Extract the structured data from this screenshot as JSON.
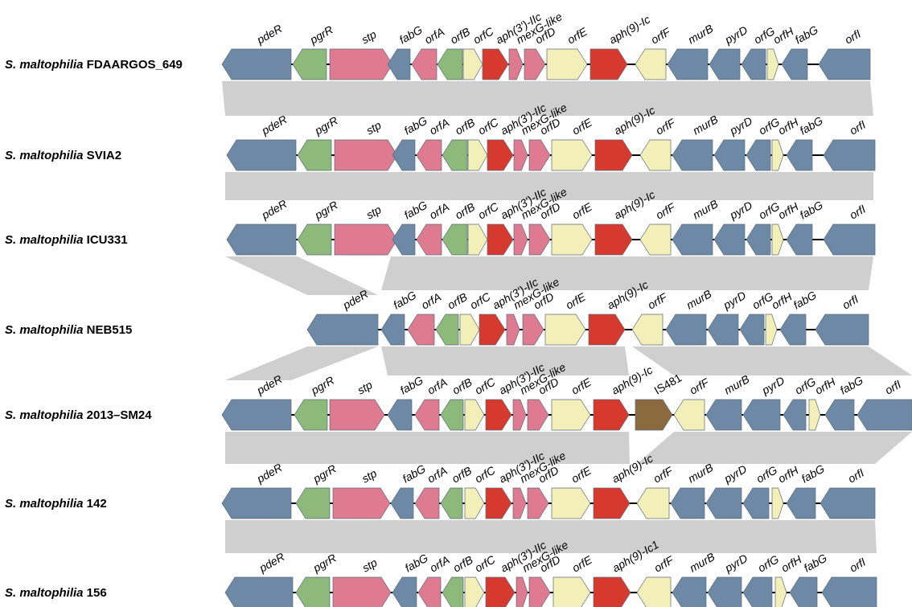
{
  "colors": {
    "regulator": "#6e89a5",
    "green": "#8db97a",
    "pink": "#df7b91",
    "light": "#f3efb9",
    "red": "#d63a2e",
    "brown": "#8a6a3e",
    "homology": "#cfcfcf"
  },
  "tracks": [
    {
      "species": "S. maltophilia",
      "strain": "FDAARGOS_649",
      "genes": [
        {
          "label": "pdeR",
          "color": "regulator",
          "dir": -1
        },
        {
          "label": "pgrR",
          "color": "green",
          "dir": -1
        },
        {
          "label": "stp",
          "color": "pink",
          "dir": 1
        },
        {
          "label": "fabG",
          "color": "regulator",
          "dir": -1
        },
        {
          "label": "orfA",
          "color": "pink",
          "dir": -1
        },
        {
          "label": "orfB",
          "color": "green",
          "dir": -1
        },
        {
          "label": "orfC",
          "color": "light",
          "dir": 1
        },
        {
          "label": "aph(3')-IIc",
          "color": "red",
          "dir": 1
        },
        {
          "label": "mexG-like",
          "color": "pink",
          "dir": 1
        },
        {
          "label": "orfD",
          "color": "pink",
          "dir": 1
        },
        {
          "label": "orfE",
          "color": "light",
          "dir": 1
        },
        {
          "label": "aph(9)-Ic",
          "color": "red",
          "dir": 1
        },
        {
          "label": "orfF",
          "color": "light",
          "dir": -1
        },
        {
          "label": "murB",
          "color": "regulator",
          "dir": -1
        },
        {
          "label": "pyrD",
          "color": "regulator",
          "dir": -1
        },
        {
          "label": "orfG",
          "color": "regulator",
          "dir": -1
        },
        {
          "label": "orfH",
          "color": "light",
          "dir": 1
        },
        {
          "label": "fabG",
          "color": "regulator",
          "dir": -1
        },
        {
          "label": "orfI",
          "color": "regulator",
          "dir": -1
        }
      ]
    },
    {
      "species": "S. maltophilia",
      "strain": "SVIA2",
      "genes": [
        {
          "label": "pdeR",
          "color": "regulator",
          "dir": -1
        },
        {
          "label": "pgrR",
          "color": "green",
          "dir": -1
        },
        {
          "label": "stp",
          "color": "pink",
          "dir": 1
        },
        {
          "label": "fabG",
          "color": "regulator",
          "dir": -1
        },
        {
          "label": "orfA",
          "color": "pink",
          "dir": -1
        },
        {
          "label": "orfB",
          "color": "green",
          "dir": -1
        },
        {
          "label": "orfC",
          "color": "light",
          "dir": 1
        },
        {
          "label": "aph(3')-IIc",
          "color": "red",
          "dir": 1
        },
        {
          "label": "mexG-like",
          "color": "pink",
          "dir": 1
        },
        {
          "label": "orfD",
          "color": "pink",
          "dir": 1
        },
        {
          "label": "orfE",
          "color": "light",
          "dir": 1
        },
        {
          "label": "aph(9)-Ic",
          "color": "red",
          "dir": 1
        },
        {
          "label": "orfF",
          "color": "light",
          "dir": -1
        },
        {
          "label": "murB",
          "color": "regulator",
          "dir": -1
        },
        {
          "label": "pyrD",
          "color": "regulator",
          "dir": -1
        },
        {
          "label": "orfG",
          "color": "regulator",
          "dir": -1
        },
        {
          "label": "orfH",
          "color": "light",
          "dir": 1
        },
        {
          "label": "fabG",
          "color": "regulator",
          "dir": -1
        },
        {
          "label": "orfI",
          "color": "regulator",
          "dir": -1
        }
      ]
    },
    {
      "species": "S. maltophilia",
      "strain": "ICU331",
      "genes": [
        {
          "label": "pdeR",
          "color": "regulator",
          "dir": -1
        },
        {
          "label": "pgrR",
          "color": "green",
          "dir": -1
        },
        {
          "label": "stp",
          "color": "pink",
          "dir": 1
        },
        {
          "label": "fabG",
          "color": "regulator",
          "dir": -1
        },
        {
          "label": "orfA",
          "color": "pink",
          "dir": -1
        },
        {
          "label": "orfB",
          "color": "green",
          "dir": -1
        },
        {
          "label": "orfC",
          "color": "light",
          "dir": 1
        },
        {
          "label": "aph(3')-IIc",
          "color": "red",
          "dir": 1
        },
        {
          "label": "mexG-like",
          "color": "pink",
          "dir": 1
        },
        {
          "label": "orfD",
          "color": "pink",
          "dir": 1
        },
        {
          "label": "orfE",
          "color": "light",
          "dir": 1
        },
        {
          "label": "aph(9)-Ic",
          "color": "red",
          "dir": 1
        },
        {
          "label": "orfF",
          "color": "light",
          "dir": -1
        },
        {
          "label": "murB",
          "color": "regulator",
          "dir": -1
        },
        {
          "label": "pyrD",
          "color": "regulator",
          "dir": -1
        },
        {
          "label": "orfG",
          "color": "regulator",
          "dir": -1
        },
        {
          "label": "orfH",
          "color": "light",
          "dir": 1
        },
        {
          "label": "fabG",
          "color": "regulator",
          "dir": -1
        },
        {
          "label": "orfI",
          "color": "regulator",
          "dir": -1
        }
      ]
    },
    {
      "species": "S. maltophilia",
      "strain": "NEB515",
      "genes": [
        {
          "label": "pdeR",
          "color": "regulator",
          "dir": -1
        },
        {
          "label": "fabG",
          "color": "regulator",
          "dir": -1
        },
        {
          "label": "orfA",
          "color": "pink",
          "dir": -1
        },
        {
          "label": "orfB",
          "color": "green",
          "dir": -1
        },
        {
          "label": "orfC",
          "color": "light",
          "dir": 1
        },
        {
          "label": "aph(3')-IIc",
          "color": "red",
          "dir": 1
        },
        {
          "label": "mexG-like",
          "color": "pink",
          "dir": 1
        },
        {
          "label": "orfD",
          "color": "pink",
          "dir": 1
        },
        {
          "label": "orfE",
          "color": "light",
          "dir": 1
        },
        {
          "label": "aph(9)-Ic",
          "color": "red",
          "dir": 1
        },
        {
          "label": "orfF",
          "color": "light",
          "dir": -1
        },
        {
          "label": "murB",
          "color": "regulator",
          "dir": -1
        },
        {
          "label": "pyrD",
          "color": "regulator",
          "dir": -1
        },
        {
          "label": "orfG",
          "color": "regulator",
          "dir": -1
        },
        {
          "label": "orfH",
          "color": "light",
          "dir": 1
        },
        {
          "label": "fabG",
          "color": "regulator",
          "dir": -1
        },
        {
          "label": "orfI",
          "color": "regulator",
          "dir": -1
        }
      ]
    },
    {
      "species": "S. maltophilia",
      "strain": "2013–SM24",
      "genes": [
        {
          "label": "pdeR",
          "color": "regulator",
          "dir": -1
        },
        {
          "label": "pgrR",
          "color": "green",
          "dir": -1
        },
        {
          "label": "stp",
          "color": "pink",
          "dir": 1
        },
        {
          "label": "fabG",
          "color": "regulator",
          "dir": -1
        },
        {
          "label": "orfA",
          "color": "pink",
          "dir": -1
        },
        {
          "label": "orfB",
          "color": "green",
          "dir": -1
        },
        {
          "label": "orfC",
          "color": "light",
          "dir": 1
        },
        {
          "label": "aph(3')-IIc",
          "color": "red",
          "dir": 1
        },
        {
          "label": "mexG-like",
          "color": "pink",
          "dir": 1
        },
        {
          "label": "orfD",
          "color": "pink",
          "dir": 1
        },
        {
          "label": "orfE",
          "color": "light",
          "dir": 1
        },
        {
          "label": "aph(9)-Ic",
          "color": "red",
          "dir": 1
        },
        {
          "label": "IS481",
          "color": "brown",
          "dir": 1
        },
        {
          "label": "orfF",
          "color": "light",
          "dir": -1
        },
        {
          "label": "murB",
          "color": "regulator",
          "dir": -1
        },
        {
          "label": "pyrD",
          "color": "regulator",
          "dir": -1
        },
        {
          "label": "orfG",
          "color": "regulator",
          "dir": -1
        },
        {
          "label": "orfH",
          "color": "light",
          "dir": 1
        },
        {
          "label": "fabG",
          "color": "regulator",
          "dir": -1
        },
        {
          "label": "orfI",
          "color": "regulator",
          "dir": -1
        }
      ]
    },
    {
      "species": "S. maltophilia",
      "strain": "142",
      "genes": [
        {
          "label": "pdeR",
          "color": "regulator",
          "dir": -1
        },
        {
          "label": "pgrR",
          "color": "green",
          "dir": -1
        },
        {
          "label": "stp",
          "color": "pink",
          "dir": 1
        },
        {
          "label": "fabG",
          "color": "regulator",
          "dir": -1
        },
        {
          "label": "orfA",
          "color": "pink",
          "dir": -1
        },
        {
          "label": "orfB",
          "color": "green",
          "dir": -1
        },
        {
          "label": "orfC",
          "color": "light",
          "dir": 1
        },
        {
          "label": "aph(3')-IIc",
          "color": "red",
          "dir": 1
        },
        {
          "label": "mexG-like",
          "color": "pink",
          "dir": 1
        },
        {
          "label": "orfD",
          "color": "pink",
          "dir": 1
        },
        {
          "label": "orfE",
          "color": "light",
          "dir": 1
        },
        {
          "label": "aph(9)-Ic",
          "color": "red",
          "dir": 1
        },
        {
          "label": "orfF",
          "color": "light",
          "dir": -1
        },
        {
          "label": "murB",
          "color": "regulator",
          "dir": -1
        },
        {
          "label": "pyrD",
          "color": "regulator",
          "dir": -1
        },
        {
          "label": "orfG",
          "color": "regulator",
          "dir": -1
        },
        {
          "label": "orfH",
          "color": "light",
          "dir": 1
        },
        {
          "label": "fabG",
          "color": "regulator",
          "dir": -1
        },
        {
          "label": "orfI",
          "color": "regulator",
          "dir": -1
        }
      ]
    },
    {
      "species": "S. maltophilia",
      "strain": "156",
      "genes": [
        {
          "label": "pdeR",
          "color": "regulator",
          "dir": -1
        },
        {
          "label": "pgrR",
          "color": "green",
          "dir": -1
        },
        {
          "label": "stp",
          "color": "pink",
          "dir": 1
        },
        {
          "label": "fabG",
          "color": "regulator",
          "dir": -1
        },
        {
          "label": "orfA",
          "color": "pink",
          "dir": -1
        },
        {
          "label": "orfB",
          "color": "green",
          "dir": -1
        },
        {
          "label": "orfC",
          "color": "light",
          "dir": 1
        },
        {
          "label": "aph(3')-IIc",
          "color": "red",
          "dir": 1
        },
        {
          "label": "mexG-like",
          "color": "pink",
          "dir": 1
        },
        {
          "label": "orfD",
          "color": "pink",
          "dir": 1
        },
        {
          "label": "orfE",
          "color": "light",
          "dir": 1
        },
        {
          "label": "aph(9)-Ic1",
          "color": "red",
          "dir": 1
        },
        {
          "label": "orfF",
          "color": "light",
          "dir": -1
        },
        {
          "label": "murB",
          "color": "regulator",
          "dir": -1
        },
        {
          "label": "pyrD",
          "color": "regulator",
          "dir": -1
        },
        {
          "label": "orfG",
          "color": "regulator",
          "dir": -1
        },
        {
          "label": "orfH",
          "color": "light",
          "dir": 1
        },
        {
          "label": "fabG",
          "color": "regulator",
          "dir": -1
        },
        {
          "label": "orfI",
          "color": "regulator",
          "dir": -1
        }
      ]
    }
  ]
}
